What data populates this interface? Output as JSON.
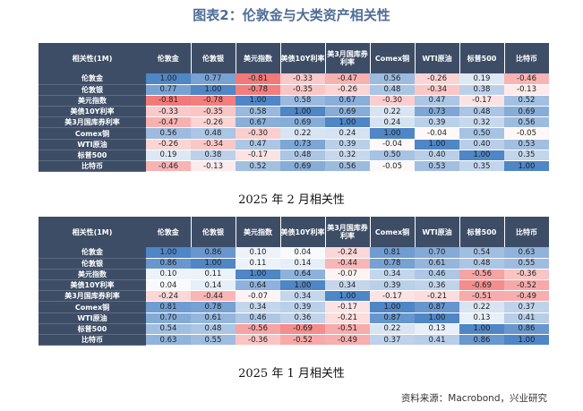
{
  "title": "图表2：伦敦金与大类资产相关性",
  "corner_label": "相关性(1M)",
  "columns": [
    "伦敦金",
    "伦敦银",
    "美元指数",
    "美债10Y利率",
    "美3月国库券利率",
    "Comex铜",
    "WTI原油",
    "标普500",
    "比特币"
  ],
  "rows": [
    "伦敦金",
    "伦敦银",
    "美元指数",
    "美债10Y利率",
    "美3月国库券利率",
    "Comex铜",
    "WTI原油",
    "标普500",
    "比特币"
  ],
  "tables": [
    {
      "caption": "2025 年 2 月相关性",
      "values": [
        [
          "1.00",
          "0.77",
          "-0.81",
          "-0.33",
          "-0.47",
          "0.56",
          "-0.26",
          "0.19",
          "-0.46"
        ],
        [
          "0.77",
          "1.00",
          "-0.78",
          "-0.35",
          "-0.26",
          "0.48",
          "-0.34",
          "0.38",
          "-0.13"
        ],
        [
          "-0.81",
          "-0.78",
          "1.00",
          "0.58",
          "0.67",
          "-0.30",
          "0.47",
          "-0.17",
          "0.52"
        ],
        [
          "-0.33",
          "-0.35",
          "0.58",
          "1.00",
          "0.69",
          "0.22",
          "0.73",
          "0.48",
          "0.69"
        ],
        [
          "-0.47",
          "-0.26",
          "0.67",
          "0.69",
          "1.00",
          "0.24",
          "0.39",
          "0.32",
          "0.56"
        ],
        [
          "0.56",
          "0.48",
          "-0.30",
          "0.22",
          "0.24",
          "1.00",
          "-0.04",
          "0.50",
          "-0.05"
        ],
        [
          "-0.26",
          "-0.34",
          "0.47",
          "0.73",
          "0.39",
          "-0.04",
          "1.00",
          "0.40",
          "0.53"
        ],
        [
          "0.19",
          "0.38",
          "-0.17",
          "0.48",
          "0.32",
          "0.50",
          "0.40",
          "1.00",
          "0.35"
        ],
        [
          "-0.46",
          "-0.13",
          "0.52",
          "0.69",
          "0.56",
          "-0.05",
          "0.53",
          "0.35",
          "1.00"
        ]
      ]
    },
    {
      "caption": "2025 年 1 月相关性",
      "values": [
        [
          "1.00",
          "0.86",
          "0.10",
          "0.04",
          "-0.24",
          "0.81",
          "0.70",
          "0.54",
          "0.63"
        ],
        [
          "0.86",
          "1.00",
          "0.11",
          "0.14",
          "-0.44",
          "0.78",
          "0.61",
          "0.48",
          "0.55"
        ],
        [
          "0.10",
          "0.11",
          "1.00",
          "0.64",
          "-0.07",
          "0.34",
          "0.46",
          "-0.56",
          "-0.36"
        ],
        [
          "0.04",
          "0.14",
          "0.64",
          "1.00",
          "0.34",
          "0.39",
          "0.36",
          "-0.69",
          "-0.52"
        ],
        [
          "-0.24",
          "-0.44",
          "-0.07",
          "0.34",
          "1.00",
          "-0.17",
          "-0.21",
          "-0.51",
          "-0.49"
        ],
        [
          "0.81",
          "0.78",
          "0.34",
          "0.39",
          "-0.17",
          "1.00",
          "0.87",
          "0.22",
          "0.37"
        ],
        [
          "0.70",
          "0.61",
          "0.46",
          "0.36",
          "-0.21",
          "0.87",
          "1.00",
          "0.13",
          "0.41"
        ],
        [
          "0.54",
          "0.48",
          "-0.56",
          "-0.69",
          "-0.51",
          "0.22",
          "0.13",
          "1.00",
          "0.86"
        ],
        [
          "0.63",
          "0.55",
          "-0.36",
          "-0.52",
          "-0.49",
          "0.37",
          "0.41",
          "0.86",
          "1.00"
        ]
      ]
    }
  ],
  "source": "资料来源：Macrobond，兴业研究",
  "colors": {
    "header_bg": "#3d4d66",
    "positive": "#4f86c6",
    "negative": "#ef5a5a",
    "title": "#4f6d96"
  }
}
